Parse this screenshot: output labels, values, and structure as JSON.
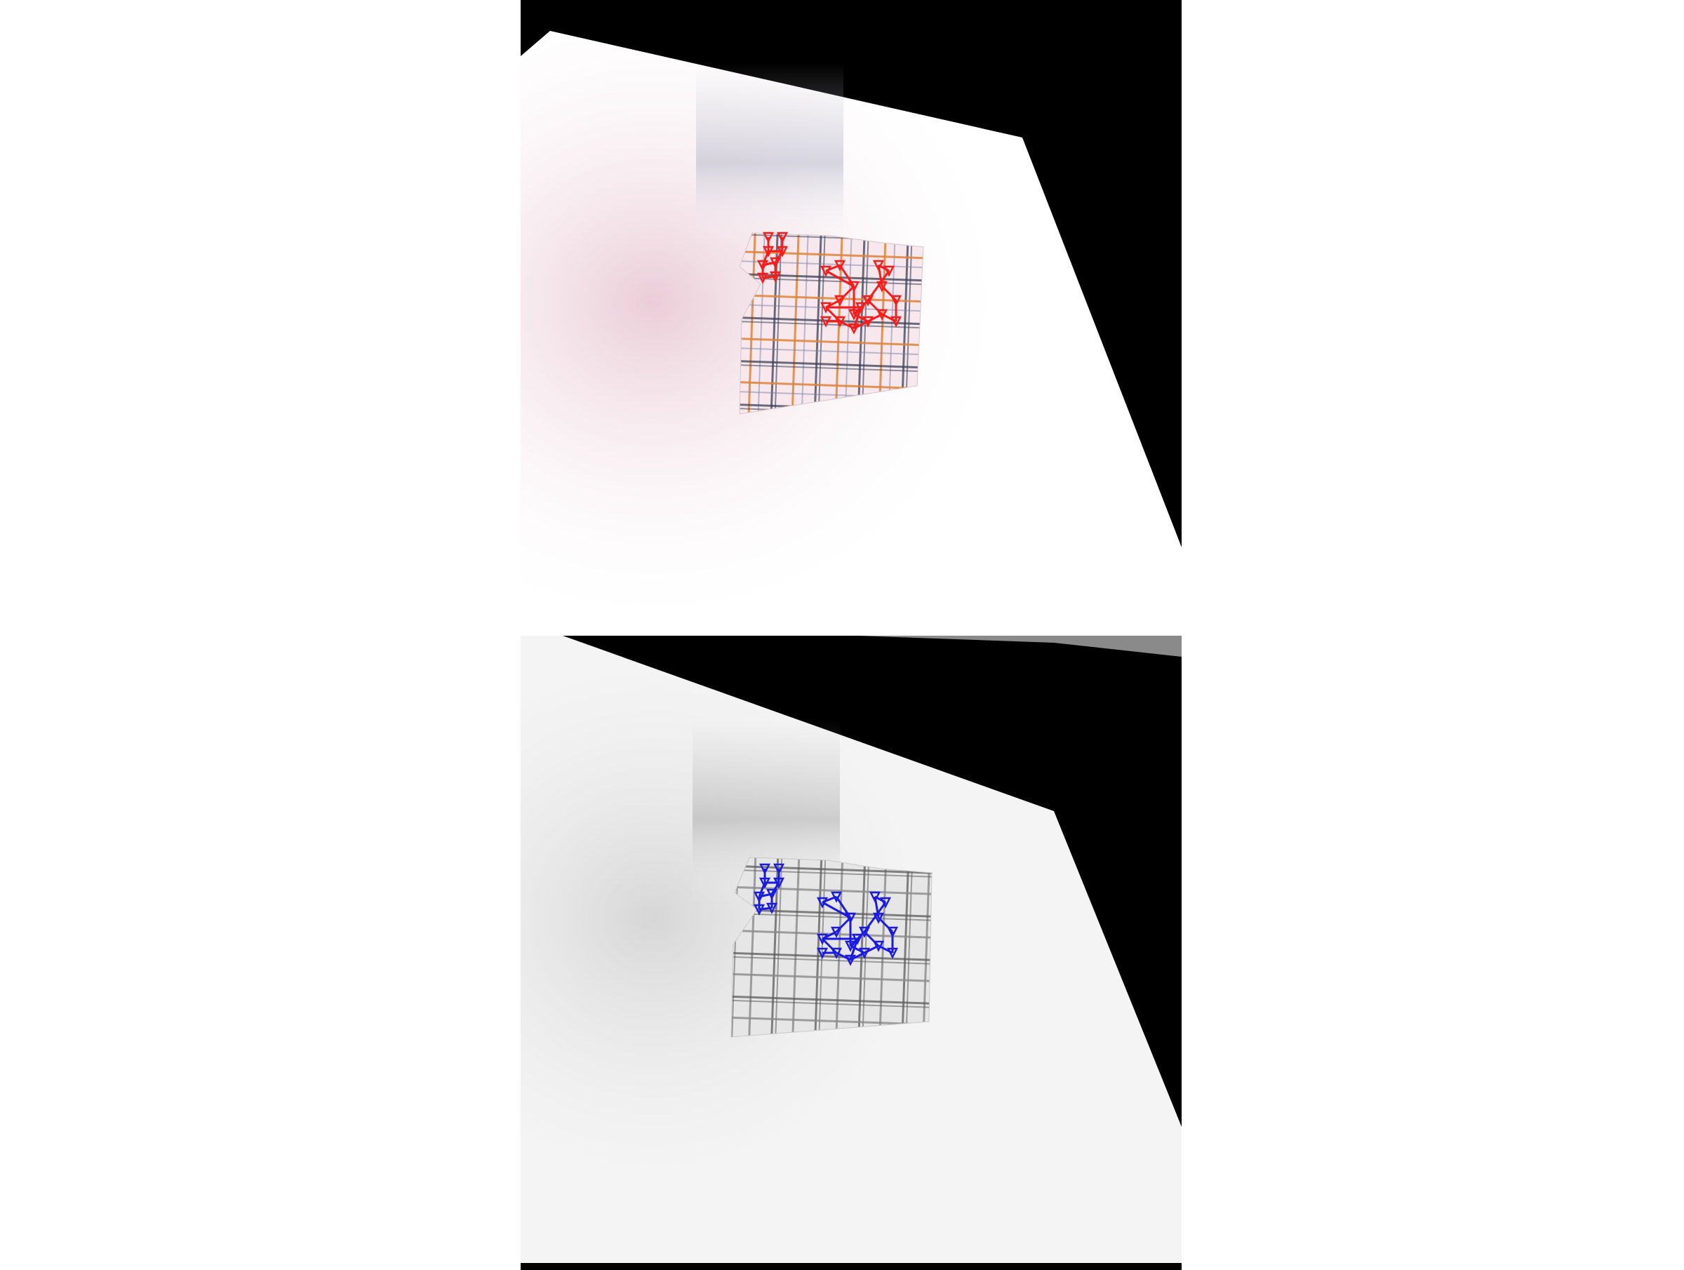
{
  "scene": {
    "description_panels": [
      "color-render",
      "grayscale-render"
    ],
    "colors": {
      "background": "#000000",
      "table_surface_light": "#ffffff",
      "table_surface_color_tint": "#f3e6ea",
      "table_surface_gray": "#efefef",
      "cloth_base_color": "#f6e8ec",
      "cloth_stripe_dark": "#3a3f55",
      "cloth_stripe_orange": "#e0823a",
      "cloth_stripe_gray": "#5a5a5a",
      "cloth_base_gray": "#e6e6e6",
      "keypoint_top": "#ff1a1a",
      "keypoint_bottom": "#1a1ae6"
    },
    "icons": {
      "keypoint_marker": "triangle-marker-icon",
      "mesh_edge": "line-segment-icon"
    }
  }
}
